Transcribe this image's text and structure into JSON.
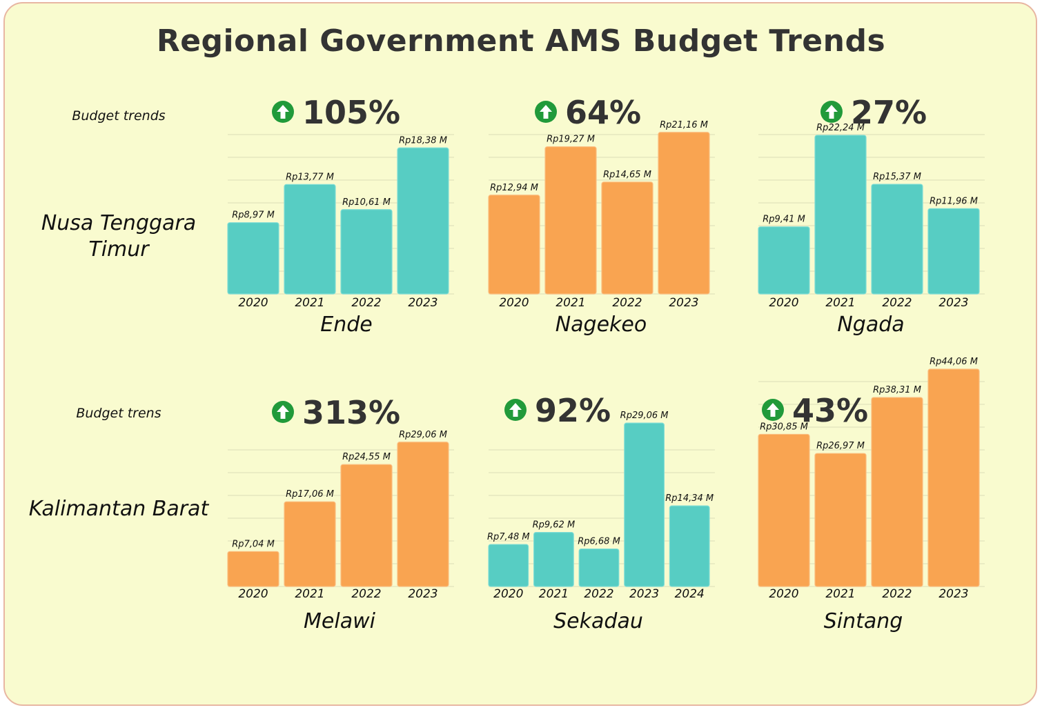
{
  "title": "Regional Government AMS Budget Trends",
  "colors": {
    "background": "#f9fbcf",
    "teal": "#57cdc3",
    "orange": "#f9a451",
    "up_icon": "#219a3a",
    "text": "#333333"
  },
  "rows": [
    {
      "caption": "Budget trends",
      "region": "Nusa Tenggara Timur"
    },
    {
      "caption": "Budget trens",
      "region": "Kalimantan Barat"
    }
  ],
  "chart_data": [
    {
      "type": "bar",
      "title": "Ende",
      "trend": "105%",
      "trend_icon": "up-arrow-icon",
      "color": "#57cdc3",
      "categories": [
        "2020",
        "2021",
        "2022",
        "2023"
      ],
      "values": [
        8.97,
        13.77,
        10.61,
        18.38
      ],
      "labels": [
        "Rp8,97 M",
        "Rp13,77 M",
        "Rp10,61 M",
        "Rp18,38 M"
      ]
    },
    {
      "type": "bar",
      "title": "Nagekeo",
      "trend": "64%",
      "trend_icon": "up-arrow-icon",
      "color": "#f9a451",
      "categories": [
        "2020",
        "2021",
        "2022",
        "2023"
      ],
      "values": [
        12.94,
        19.27,
        14.65,
        21.16
      ],
      "labels": [
        "Rp12,94 M",
        "Rp19,27 M",
        "Rp14,65 M",
        "Rp21,16 M"
      ]
    },
    {
      "type": "bar",
      "title": "Ngada",
      "trend": "27%",
      "trend_icon": "up-arrow-icon",
      "color": "#57cdc3",
      "categories": [
        "2020",
        "2021",
        "2022",
        "2023"
      ],
      "values": [
        9.41,
        22.24,
        15.37,
        11.96
      ],
      "labels": [
        "Rp9,41 M",
        "Rp22,24 M",
        "Rp15,37 M",
        "Rp11,96 M"
      ]
    },
    {
      "type": "bar",
      "title": "Melawi",
      "trend": "313%",
      "trend_icon": "up-arrow-icon",
      "color": "#f9a451",
      "categories": [
        "2020",
        "2021",
        "2022",
        "2023"
      ],
      "values": [
        7.04,
        17.06,
        24.55,
        29.06
      ],
      "labels": [
        "Rp7,04 M",
        "Rp17,06 M",
        "Rp24,55 M",
        "Rp29,06 M"
      ]
    },
    {
      "type": "bar",
      "title": "Sekadau",
      "trend": "92%",
      "trend_icon": "up-arrow-icon",
      "color": "#57cdc3",
      "categories": [
        "2020",
        "2021",
        "2022",
        "2023",
        "2024"
      ],
      "values": [
        7.48,
        9.62,
        6.68,
        29.06,
        14.34
      ],
      "labels": [
        "Rp7,48 M",
        "Rp9,62 M",
        "Rp6,68 M",
        "Rp29,06 M",
        "Rp14,34 M"
      ]
    },
    {
      "type": "bar",
      "title": "Sintang",
      "trend": "43%",
      "trend_icon": "up-arrow-icon",
      "color": "#f9a451",
      "categories": [
        "2020",
        "2021",
        "2022",
        "2023"
      ],
      "values": [
        30.85,
        26.97,
        38.31,
        44.06
      ],
      "labels": [
        "Rp30,85 M",
        "Rp26,97 M",
        "Rp38,31 M",
        "Rp44,06 M"
      ]
    }
  ]
}
